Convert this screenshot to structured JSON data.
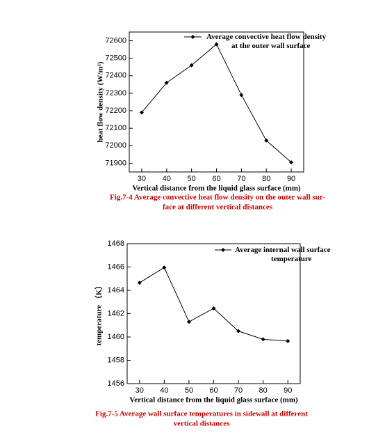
{
  "chart_data": [
    {
      "type": "line",
      "x": [
        30,
        40,
        50,
        60,
        70,
        80,
        90
      ],
      "xlim": [
        25,
        95
      ],
      "xticks": [
        30,
        40,
        50,
        60,
        70,
        80,
        90
      ],
      "ylim": [
        71850,
        72650
      ],
      "yticks": [
        71900,
        72000,
        72100,
        72200,
        72300,
        72400,
        72500,
        72600
      ],
      "x_label": "Vertical distance from the liquid glass surface (mm)",
      "y_label": "heat flow density (W/m²)",
      "series": [
        {
          "name": "Average convective heat flow density\nat the outer wall surface",
          "color": "#000000",
          "values": [
            72190,
            72360,
            72460,
            72580,
            72290,
            72030,
            71905
          ]
        }
      ],
      "caption": [
        "Fig.7-4 Average convective heat flow density on the outer wall sur-",
        "face at different vertical distances"
      ]
    },
    {
      "type": "line",
      "x": [
        30,
        40,
        50,
        60,
        70,
        80,
        90
      ],
      "xlim": [
        25,
        95
      ],
      "xticks": [
        30,
        40,
        50,
        60,
        70,
        80,
        90
      ],
      "ylim": [
        1456,
        1468
      ],
      "yticks": [
        1456,
        1458,
        1460,
        1462,
        1464,
        1466,
        1468
      ],
      "x_label": "Vertical distance from the liquid glass surface (mm)",
      "y_label": "temperature （K）",
      "series": [
        {
          "name": "Average internal wall surface\ntemperature",
          "color": "#000000",
          "values": [
            1464.65,
            1465.95,
            1461.3,
            1462.45,
            1460.5,
            1459.8,
            1459.65
          ]
        }
      ],
      "caption": [
        "Fig.7-5 Average wall surface temperatures in sidewall at different",
        "vertical distances"
      ]
    }
  ]
}
